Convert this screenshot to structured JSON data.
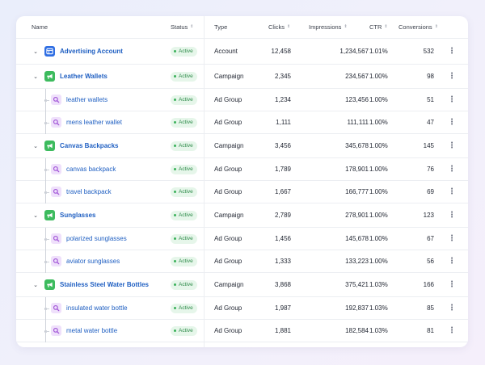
{
  "columns": {
    "name": "Name",
    "status": "Status",
    "type": "Type",
    "clicks": "Clicks",
    "impressions": "Impressions",
    "ctr": "CTR",
    "conversions": "Conversions"
  },
  "sort_glyph": "⇕",
  "row_menu_glyph": "⋮",
  "rows": [
    {
      "level": 0,
      "kind": "account",
      "name": "Advertising Account",
      "status": "Active",
      "type": "Account",
      "clicks": "12,458",
      "impressions": "1,234,567",
      "ctr": "1.01%",
      "conversions": "532"
    },
    {
      "level": 1,
      "kind": "campaign",
      "name": "Leather Wallets",
      "status": "Active",
      "type": "Campaign",
      "clicks": "2,345",
      "impressions": "234,567",
      "ctr": "1.00%",
      "conversions": "98"
    },
    {
      "level": 2,
      "kind": "adgroup",
      "name": "leather wallets",
      "status": "Active",
      "type": "Ad Group",
      "clicks": "1,234",
      "impressions": "123,456",
      "ctr": "1.00%",
      "conversions": "51"
    },
    {
      "level": 2,
      "kind": "adgroup",
      "name": "mens leather wallet",
      "status": "Active",
      "type": "Ad Group",
      "clicks": "1,111",
      "impressions": "111,111",
      "ctr": "1.00%",
      "conversions": "47"
    },
    {
      "level": 1,
      "kind": "campaign",
      "name": "Canvas Backpacks",
      "status": "Active",
      "type": "Campaign",
      "clicks": "3,456",
      "impressions": "345,678",
      "ctr": "1.00%",
      "conversions": "145"
    },
    {
      "level": 2,
      "kind": "adgroup",
      "name": "canvas backpack",
      "status": "Active",
      "type": "Ad Group",
      "clicks": "1,789",
      "impressions": "178,901",
      "ctr": "1.00%",
      "conversions": "76"
    },
    {
      "level": 2,
      "kind": "adgroup",
      "name": "travel backpack",
      "status": "Active",
      "type": "Ad Group",
      "clicks": "1,667",
      "impressions": "166,777",
      "ctr": "1.00%",
      "conversions": "69"
    },
    {
      "level": 1,
      "kind": "campaign",
      "name": "Sunglasses",
      "status": "Active",
      "type": "Campaign",
      "clicks": "2,789",
      "impressions": "278,901",
      "ctr": "1.00%",
      "conversions": "123"
    },
    {
      "level": 2,
      "kind": "adgroup",
      "name": "polarized sunglasses",
      "status": "Active",
      "type": "Ad Group",
      "clicks": "1,456",
      "impressions": "145,678",
      "ctr": "1.00%",
      "conversions": "67"
    },
    {
      "level": 2,
      "kind": "adgroup",
      "name": "aviator sunglasses",
      "status": "Active",
      "type": "Ad Group",
      "clicks": "1,333",
      "impressions": "133,223",
      "ctr": "1.00%",
      "conversions": "56"
    },
    {
      "level": 1,
      "kind": "campaign",
      "name": "Stainless Steel Water Bottles",
      "status": "Active",
      "type": "Campaign",
      "clicks": "3,868",
      "impressions": "375,421",
      "ctr": "1.03%",
      "conversions": "166"
    },
    {
      "level": 2,
      "kind": "adgroup",
      "name": "insulated water bottle",
      "status": "Active",
      "type": "Ad Group",
      "clicks": "1,987",
      "impressions": "192,837",
      "ctr": "1.03%",
      "conversions": "85"
    },
    {
      "level": 2,
      "kind": "adgroup",
      "name": "metal water bottle",
      "status": "Active",
      "type": "Ad Group",
      "clicks": "1,881",
      "impressions": "182,584",
      "ctr": "1.03%",
      "conversions": "81"
    }
  ],
  "colors": {
    "account_icon": "#2f6ee3",
    "campaign_icon": "#3dbb5e",
    "adgroup_icon_bg": "#efe0fb",
    "adgroup_icon_fg": "#a054d6",
    "link": "#1f5fc2",
    "active_badge_bg": "#e6f6ea",
    "active_badge_text": "#2c8a48"
  },
  "icons": {
    "account": "account-table-icon",
    "campaign": "megaphone-icon",
    "adgroup": "search-icon",
    "expand": "chevron-down-icon"
  }
}
